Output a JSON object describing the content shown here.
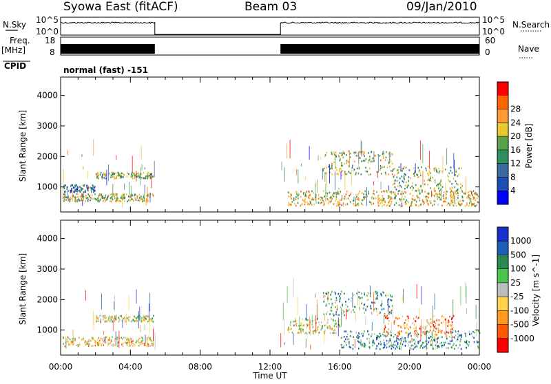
{
  "header": {
    "station": "Syowa East (fitACF)",
    "beam": "Beam 03",
    "date": "09/Jan/2010"
  },
  "strips": {
    "nsky_label": "N.Sky",
    "nsky_ticks": [
      "10^5",
      "10^0"
    ],
    "nsearch_label": "N.Search",
    "nsearch_ticks": [
      "10^5",
      "10^0"
    ],
    "freq_label_1": "Freq.",
    "freq_label_2": "[MHz]",
    "freq_ticks": [
      "18",
      "8"
    ],
    "nave_label": "Nave",
    "nave_ticks": [
      "60",
      "0"
    ],
    "cpid_label": "CPID",
    "cpid_value": "normal (fast) -151"
  },
  "colors": {
    "power": [
      "#0000ff",
      "#1c4fb5",
      "#3a6a9e",
      "#2f8f5a",
      "#5aa14b",
      "#e9c830",
      "#ff9933",
      "#ff6600",
      "#ff0000"
    ],
    "velocity": [
      "#1b2fd0",
      "#1d5fb8",
      "#2a8a52",
      "#4cc44c",
      "#bdbdbd",
      "#ffd44a",
      "#ff9a1e",
      "#ff5a00",
      "#ff0000"
    ]
  },
  "chart_data": [
    {
      "type": "heatmap",
      "name": "power",
      "xlabel": "",
      "ylabel": "Slant Range [km]",
      "x_ticks": [
        "00:00",
        "04:00",
        "08:00",
        "12:00",
        "16:00",
        "20:00",
        "00:00"
      ],
      "y_ticks": [
        "1000",
        "2000",
        "3000",
        "4000"
      ],
      "ylim": [
        180,
        4600
      ],
      "colorbar_label": "Power [dB]",
      "colorbar_ticks": [
        "4",
        "8",
        "12",
        "16",
        "20",
        "24",
        "28"
      ],
      "data_windows_hours": [
        [
          0,
          5.4
        ],
        [
          12.6,
          24
        ]
      ],
      "echo_bands": [
        {
          "t0": 0.1,
          "t1": 5.3,
          "r0": 550,
          "r1": 800,
          "level": 0.55
        },
        {
          "t0": 0.1,
          "t1": 2.0,
          "r0": 850,
          "r1": 1100,
          "level": 0.3
        },
        {
          "t0": 2.0,
          "t1": 5.3,
          "r0": 1300,
          "r1": 1500,
          "level": 0.5
        },
        {
          "t0": 13.0,
          "t1": 24.0,
          "r0": 400,
          "r1": 900,
          "level": 0.6
        },
        {
          "t0": 15.0,
          "t1": 19.0,
          "r0": 1400,
          "r1": 2200,
          "level": 0.55
        },
        {
          "t0": 19.0,
          "t1": 23.0,
          "r0": 900,
          "r1": 1700,
          "level": 0.5
        }
      ]
    },
    {
      "type": "heatmap",
      "name": "velocity",
      "xlabel": "Time UT",
      "ylabel": "Slant Range [km]",
      "x_ticks": [
        "00:00",
        "04:00",
        "08:00",
        "12:00",
        "16:00",
        "20:00",
        "00:00"
      ],
      "y_ticks": [
        "1000",
        "2000",
        "3000",
        "4000"
      ],
      "ylim": [
        180,
        4600
      ],
      "colorbar_label": "Velocity [m s^-1]",
      "colorbar_ticks": [
        "1000",
        "500",
        "100",
        "25",
        "-25",
        "-100",
        "-500",
        "-1000"
      ],
      "data_windows_hours": [
        [
          0,
          5.4
        ],
        [
          12.6,
          24
        ]
      ],
      "echo_bands": [
        {
          "t0": 0.1,
          "t1": 5.3,
          "r0": 500,
          "r1": 800,
          "level": 0.62
        },
        {
          "t0": 2.0,
          "t1": 5.3,
          "r0": 1300,
          "r1": 1500,
          "level": 0.5
        },
        {
          "t0": 13.0,
          "t1": 16.0,
          "r0": 900,
          "r1": 1400,
          "level": 0.5
        },
        {
          "t0": 15.0,
          "t1": 19.0,
          "r0": 1500,
          "r1": 2300,
          "level": 0.35
        },
        {
          "t0": 16.0,
          "t1": 24.0,
          "r0": 400,
          "r1": 1000,
          "level": 0.3
        },
        {
          "t0": 18.5,
          "t1": 22.5,
          "r0": 800,
          "r1": 1500,
          "level": 0.72
        }
      ]
    }
  ]
}
